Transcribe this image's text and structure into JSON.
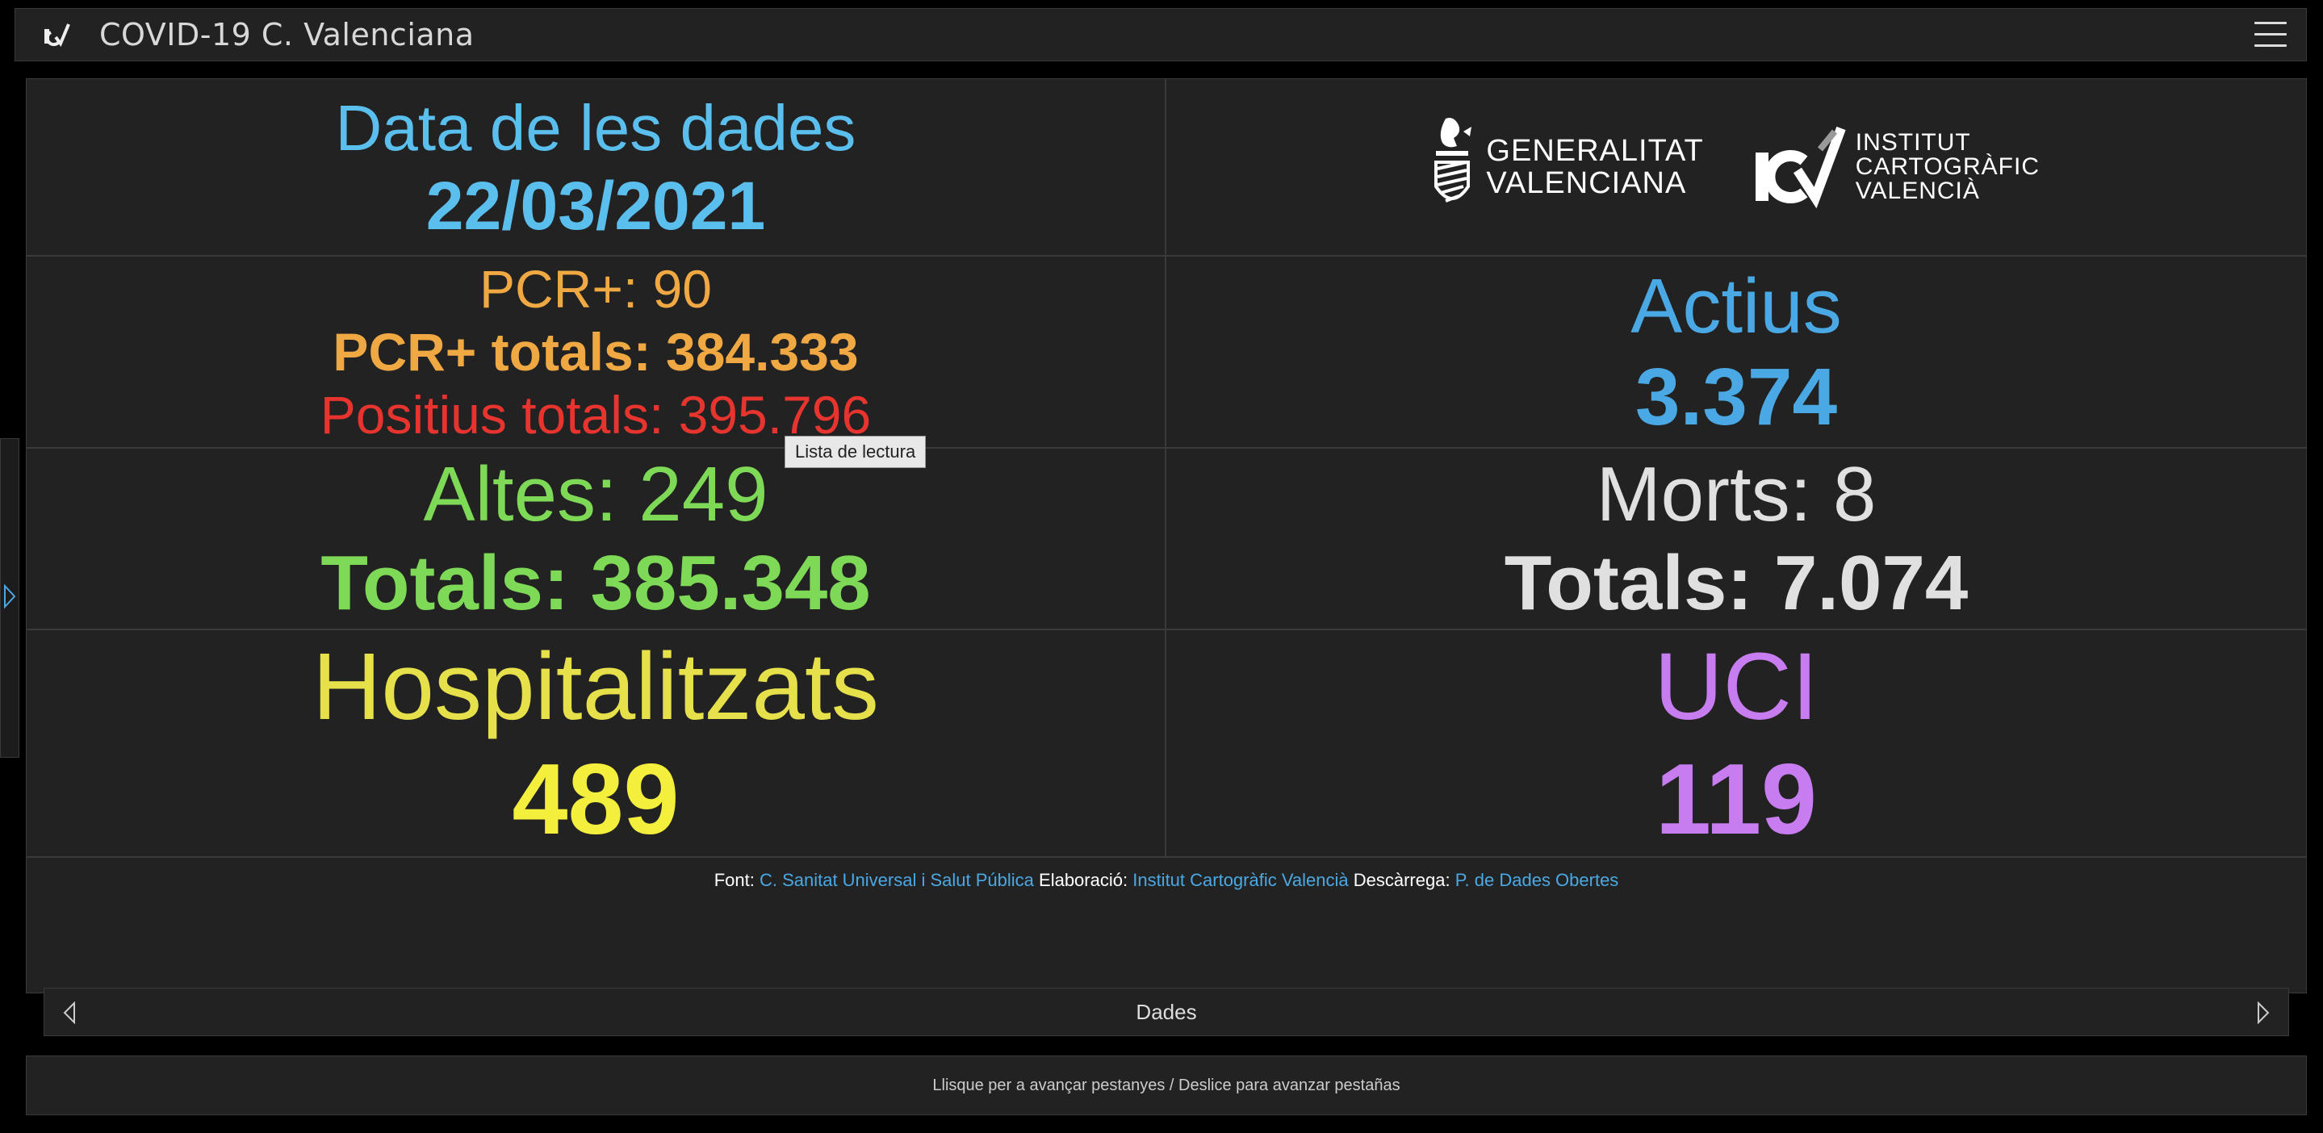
{
  "header": {
    "title": "COVID-19 C. Valenciana",
    "logo_icon": "icv-logo-icon",
    "menu_icon": "hamburger-menu-icon"
  },
  "data_date": {
    "label": "Data de les dades",
    "value": "22/03/2021"
  },
  "logos": {
    "gva_line1": "GENERALITAT",
    "gva_line2": "VALENCIANA",
    "icv_line1": "INSTITUT",
    "icv_line2": "CARTOGRÀFIC",
    "icv_line3": "VALENCIÀ"
  },
  "pcr": {
    "daily": "PCR+: 90",
    "total": "PCR+ totals: 384.333",
    "positius_total": "Positius totals: 395.796"
  },
  "actius": {
    "label": "Actius",
    "value": "3.374"
  },
  "altes": {
    "daily": "Altes: 249",
    "total": "Totals: 385.348"
  },
  "morts": {
    "daily": "Morts: 8",
    "total": "Totals: 7.074"
  },
  "hospitalitzats": {
    "label": "Hospitalitzats",
    "value": "489"
  },
  "uci": {
    "label": "UCI",
    "value": "119"
  },
  "footer": {
    "font_label": "Font:",
    "font_link": "C. Sanitat Universal i Salut Pública",
    "elaboracio_label": "Elaboració:",
    "elaboracio_link": "Institut Cartogràfic Valencià",
    "descarrega_label": "Descàrrega:",
    "descarrega_link": "P. de Dades Obertes"
  },
  "tooltip": "Lista de lectura",
  "tabbar": {
    "label": "Dades"
  },
  "hint": "Llisque per a avançar pestanyes / Deslice para avanzar pestañas",
  "colors": {
    "background": "#000000",
    "panel": "#222222",
    "date_blue": "#5bbfee",
    "pcr_orange": "#f0a843",
    "positius_red": "#e8342e",
    "actius_blue": "#4aa9e4",
    "altes_green": "#7ed957",
    "morts_grey": "#e0e0e0",
    "hosp_yellow": "#f4ef3c",
    "uci_purple": "#c77cf0"
  }
}
